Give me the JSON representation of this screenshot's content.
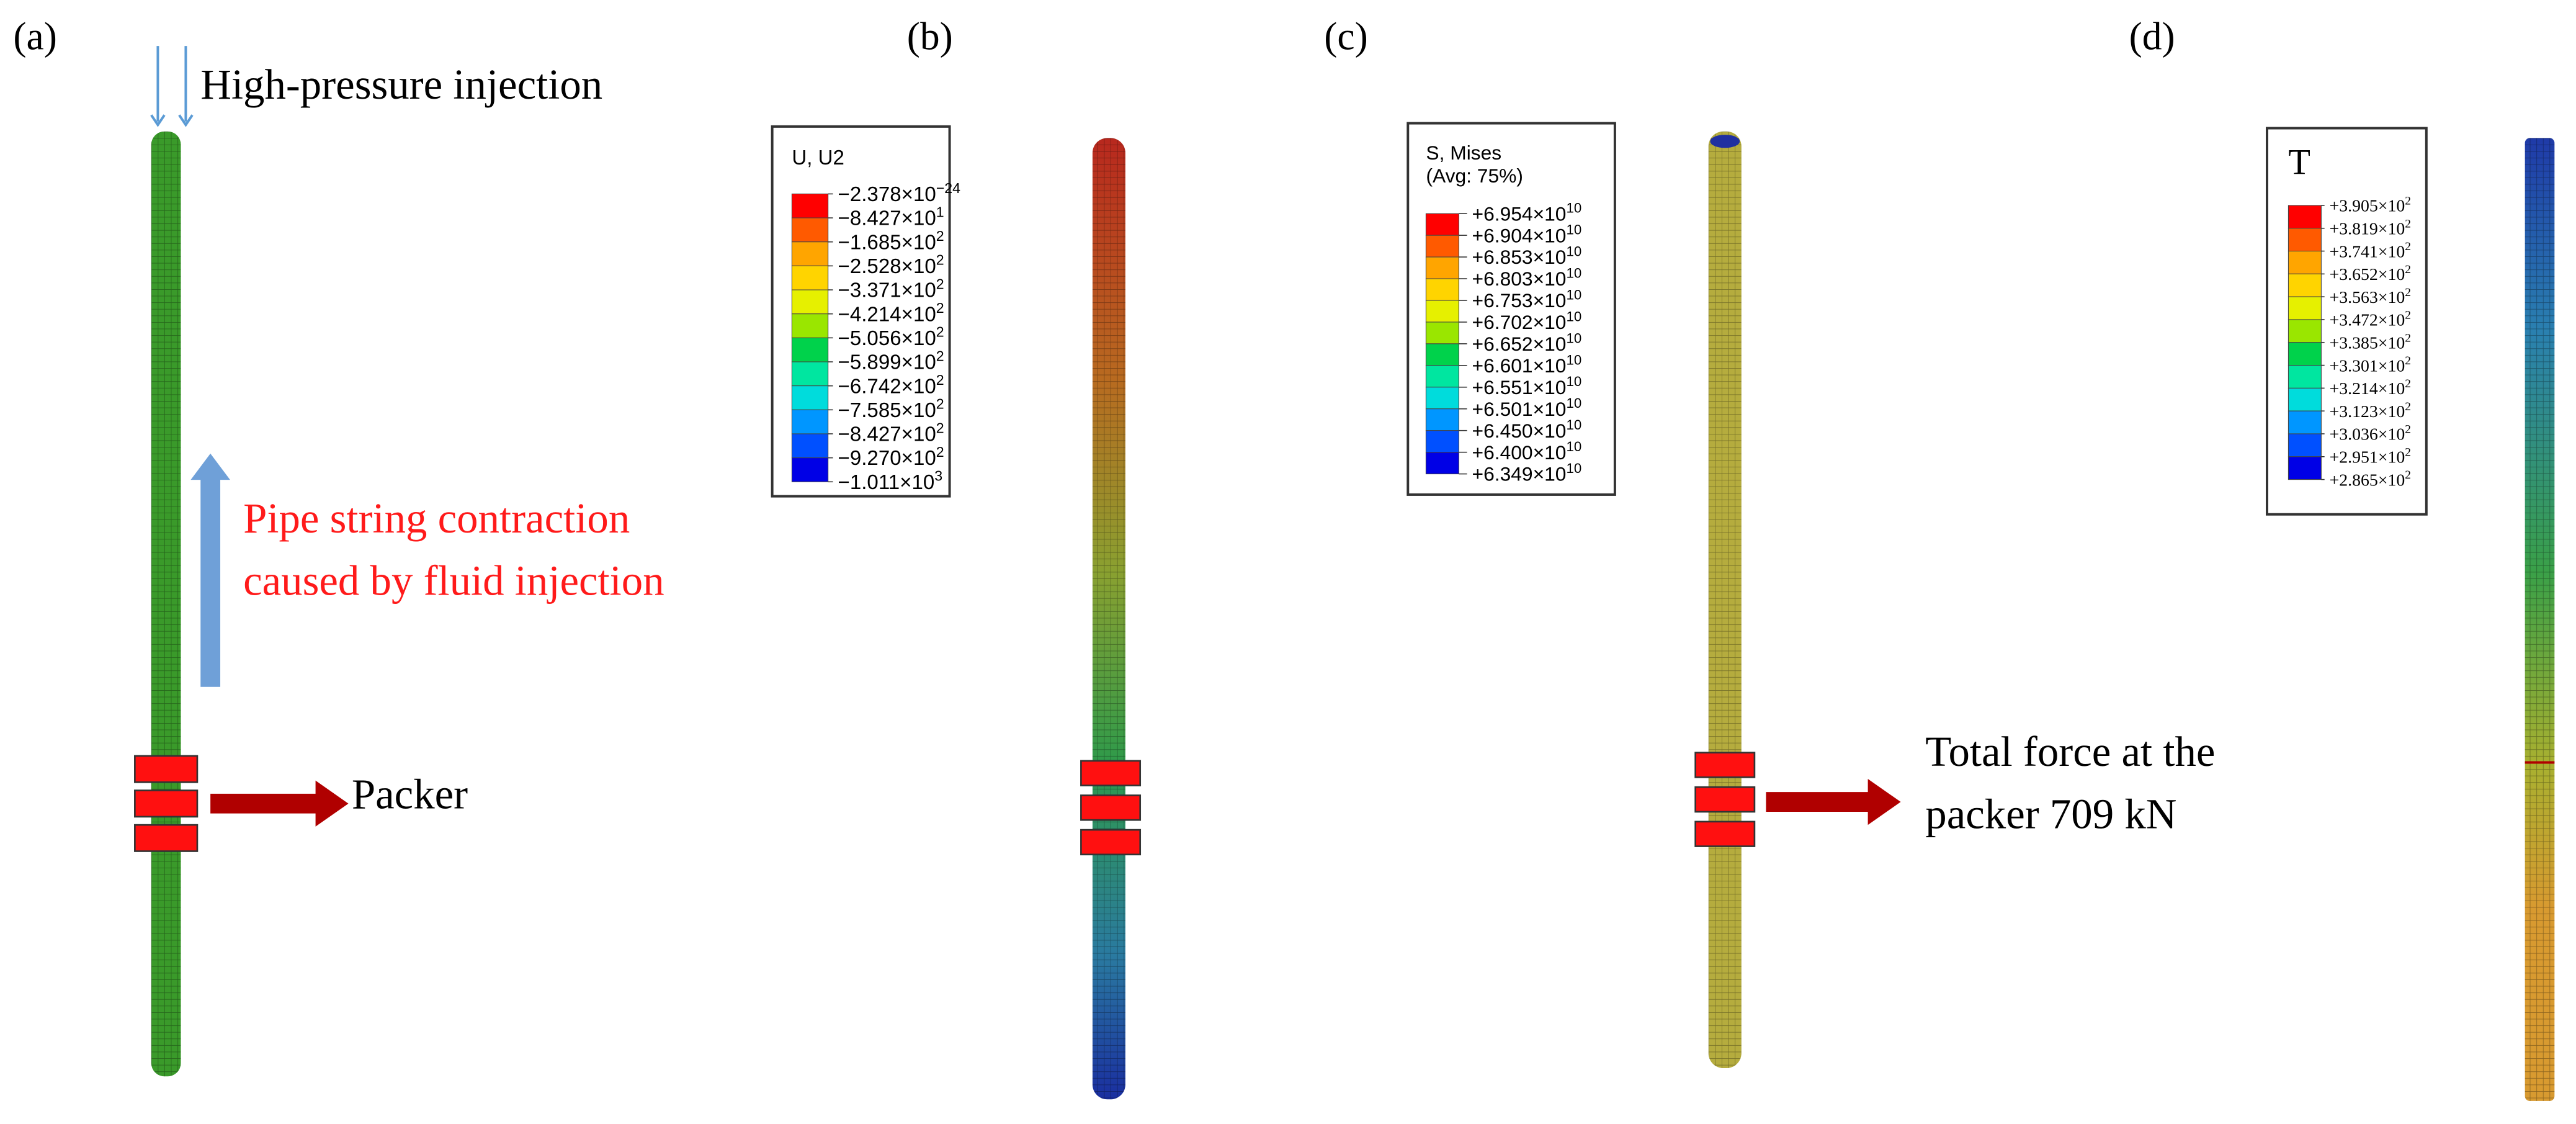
{
  "panel_labels": [
    "(a)",
    "(b)",
    "(c)",
    "(d)"
  ],
  "panel_a": {
    "injection": "High-pressure injection",
    "contraction": [
      "Pipe string contraction",
      "caused by fluid injection"
    ],
    "packer": "Packer"
  },
  "panel_c": {
    "force": [
      "Total force at the",
      "packer 709 kN"
    ]
  },
  "legends": [
    {
      "title": [
        "U, U2"
      ],
      "entries": [
        {
          "base": "−2.378×10",
          "exponent": "−24"
        },
        {
          "base": "−8.427×10",
          "exponent": "1"
        },
        {
          "base": "−1.685×10",
          "exponent": "2"
        },
        {
          "base": "−2.528×10",
          "exponent": "2"
        },
        {
          "base": "−3.371×10",
          "exponent": "2"
        },
        {
          "base": "−4.214×10",
          "exponent": "2"
        },
        {
          "base": "−5.056×10",
          "exponent": "2"
        },
        {
          "base": "−5.899×10",
          "exponent": "2"
        },
        {
          "base": "−6.742×10",
          "exponent": "2"
        },
        {
          "base": "−7.585×10",
          "exponent": "2"
        },
        {
          "base": "−8.427×10",
          "exponent": "2"
        },
        {
          "base": "−9.270×10",
          "exponent": "2"
        },
        {
          "base": "−1.011×10",
          "exponent": "3"
        }
      ]
    },
    {
      "title": [
        "S, Mises",
        "(Avg: 75%)"
      ],
      "entries": [
        {
          "base": "+6.954×10",
          "exponent": "10"
        },
        {
          "base": "+6.904×10",
          "exponent": "10"
        },
        {
          "base": "+6.853×10",
          "exponent": "10"
        },
        {
          "base": "+6.803×10",
          "exponent": "10"
        },
        {
          "base": "+6.753×10",
          "exponent": "10"
        },
        {
          "base": "+6.702×10",
          "exponent": "10"
        },
        {
          "base": "+6.652×10",
          "exponent": "10"
        },
        {
          "base": "+6.601×10",
          "exponent": "10"
        },
        {
          "base": "+6.551×10",
          "exponent": "10"
        },
        {
          "base": "+6.501×10",
          "exponent": "10"
        },
        {
          "base": "+6.450×10",
          "exponent": "10"
        },
        {
          "base": "+6.400×10",
          "exponent": "10"
        },
        {
          "base": "+6.349×10",
          "exponent": "10"
        }
      ]
    },
    {
      "title": [
        "T"
      ],
      "entries": [
        {
          "base": "+3.905×10",
          "exponent": "2"
        },
        {
          "base": "+3.819×10",
          "exponent": "2"
        },
        {
          "base": "+3.741×10",
          "exponent": "2"
        },
        {
          "base": "+3.652×10",
          "exponent": "2"
        },
        {
          "base": "+3.563×10",
          "exponent": "2"
        },
        {
          "base": "+3.472×10",
          "exponent": "2"
        },
        {
          "base": "+3.385×10",
          "exponent": "2"
        },
        {
          "base": "+3.301×10",
          "exponent": "2"
        },
        {
          "base": "+3.214×10",
          "exponent": "2"
        },
        {
          "base": "+3.123×10",
          "exponent": "2"
        },
        {
          "base": "+3.036×10",
          "exponent": "2"
        },
        {
          "base": "+2.951×10",
          "exponent": "2"
        },
        {
          "base": "+2.865×10",
          "exponent": "2"
        }
      ]
    }
  ]
}
